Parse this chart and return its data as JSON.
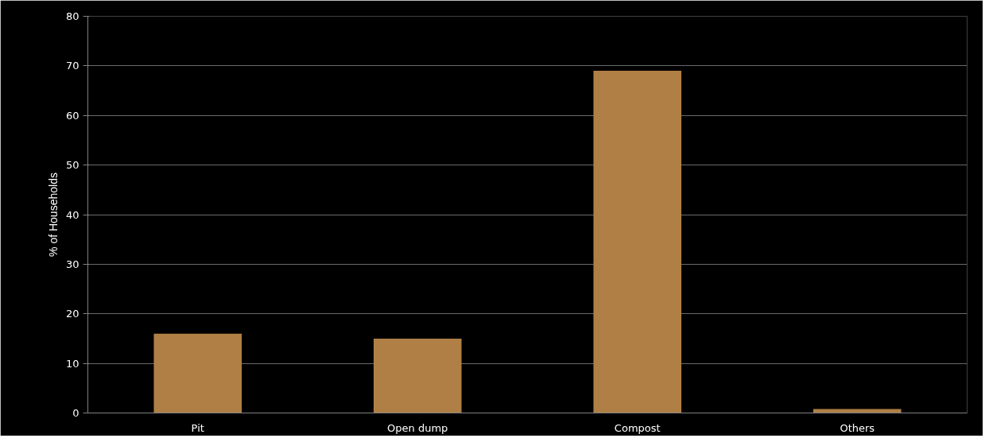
{
  "chart_data": {
    "type": "bar",
    "ylabel": "% of Households",
    "categories": [
      "Pit",
      "Open dump",
      "Compost",
      "Others"
    ],
    "values": [
      16,
      15,
      69,
      0.8
    ],
    "color": "#b07f45",
    "ylim": [
      0,
      80
    ],
    "yticks": [
      0,
      10,
      20,
      30,
      40,
      50,
      60,
      70,
      80
    ],
    "grid": "y"
  }
}
